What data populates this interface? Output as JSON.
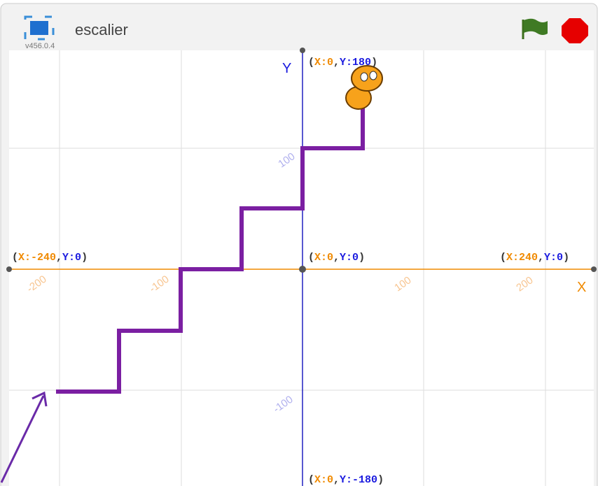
{
  "header": {
    "title": "escalier",
    "version": "v456.0.4"
  },
  "axes": {
    "x_name": "X",
    "y_name": "Y",
    "x_ticks": [
      "-200",
      "-100",
      "100",
      "200"
    ],
    "y_ticks": [
      "100",
      "-100"
    ]
  },
  "coord_labels": [
    [
      "(",
      "X:0",
      ",",
      "Y:180",
      ")"
    ],
    [
      "(",
      "X:-240",
      ",",
      "Y:0",
      ")"
    ],
    [
      "(",
      "X:0",
      ",",
      "Y:0",
      ")"
    ],
    [
      "(",
      "X:240",
      ",",
      "Y:0",
      ")"
    ],
    [
      "(",
      "X:0",
      ",",
      "Y:-180",
      ")"
    ]
  ]
}
